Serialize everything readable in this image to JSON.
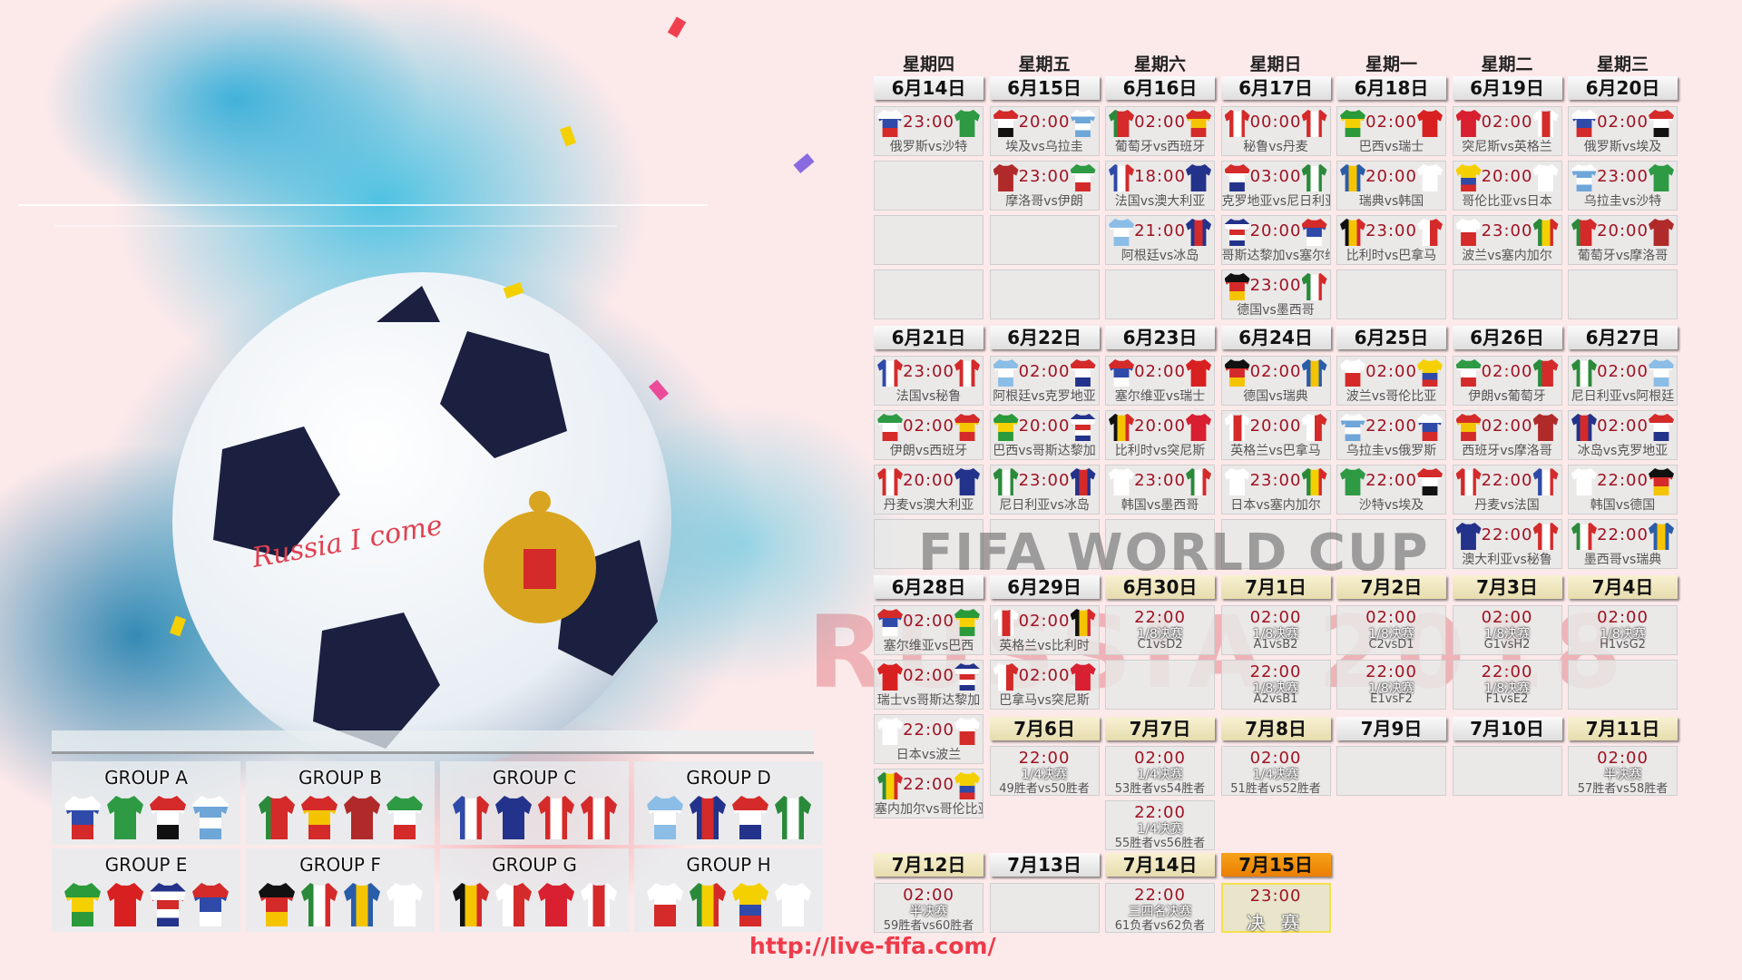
{
  "teams": {
    "RUS": {
      "o": "h",
      "c": [
        "#ffffff",
        "#2f4aa8",
        "#d42a2a"
      ]
    },
    "KSA": {
      "o": "h",
      "c": [
        "#2e9a44"
      ]
    },
    "EGY": {
      "o": "h",
      "c": [
        "#d42a2a",
        "#ffffff",
        "#111111"
      ]
    },
    "URU": {
      "o": "h",
      "c": [
        "#ffffff",
        "#6ea6d8",
        "#ffffff",
        "#6ea6d8"
      ]
    },
    "POR": {
      "o": "v",
      "c": [
        "#2a8a3a",
        "#d42a2a",
        "#d42a2a"
      ]
    },
    "ESP": {
      "o": "h",
      "c": [
        "#d42a2a",
        "#f5c400",
        "#d42a2a"
      ]
    },
    "MAR": {
      "o": "h",
      "c": [
        "#b02a2a"
      ]
    },
    "IRN": {
      "o": "h",
      "c": [
        "#2e9a44",
        "#ffffff",
        "#d42a2a"
      ]
    },
    "FRA": {
      "o": "v",
      "c": [
        "#2f4aa8",
        "#ffffff",
        "#d42a2a"
      ]
    },
    "AUS": {
      "o": "h",
      "c": [
        "#23328a"
      ]
    },
    "PER": {
      "o": "v",
      "c": [
        "#d42a2a",
        "#ffffff",
        "#d42a2a"
      ]
    },
    "DEN": {
      "o": "v",
      "c": [
        "#d42a2a",
        "#ffffff",
        "#d42a2a"
      ]
    },
    "ARG": {
      "o": "h",
      "c": [
        "#8bbde6",
        "#ffffff",
        "#8bbde6"
      ]
    },
    "ISL": {
      "o": "v",
      "c": [
        "#23328a",
        "#d42a2a",
        "#23328a"
      ]
    },
    "CRO": {
      "o": "h",
      "c": [
        "#d42a2a",
        "#ffffff",
        "#23328a"
      ]
    },
    "NGA": {
      "o": "v",
      "c": [
        "#2a8a3a",
        "#ffffff",
        "#2a8a3a"
      ]
    },
    "BRA": {
      "o": "h",
      "c": [
        "#2a9a3a",
        "#f5d000",
        "#2a9a3a"
      ]
    },
    "SUI": {
      "o": "h",
      "c": [
        "#d92020"
      ]
    },
    "CRC": {
      "o": "h",
      "c": [
        "#23328a",
        "#ffffff",
        "#d42a2a",
        "#ffffff",
        "#23328a"
      ]
    },
    "SRB": {
      "o": "h",
      "c": [
        "#d42a2a",
        "#2f4aa8",
        "#ffffff"
      ]
    },
    "GER": {
      "o": "h",
      "c": [
        "#111111",
        "#d42a2a",
        "#f5c400"
      ]
    },
    "MEX": {
      "o": "v",
      "c": [
        "#2a8a3a",
        "#ffffff",
        "#d42a2a"
      ]
    },
    "SWE": {
      "o": "v",
      "c": [
        "#2a5da8",
        "#f5c400",
        "#2a5da8"
      ]
    },
    "KOR": {
      "o": "h",
      "c": [
        "#ffffff"
      ]
    },
    "BEL": {
      "o": "v",
      "c": [
        "#111111",
        "#f5c400",
        "#d42a2a"
      ]
    },
    "PAN": {
      "o": "v",
      "c": [
        "#ffffff",
        "#d42a2a"
      ]
    },
    "TUN": {
      "o": "h",
      "c": [
        "#d82030"
      ]
    },
    "ENG": {
      "o": "v",
      "c": [
        "#ffffff",
        "#d42a2a",
        "#ffffff"
      ]
    },
    "POL": {
      "o": "h",
      "c": [
        "#ffffff",
        "#d42a2a"
      ]
    },
    "SEN": {
      "o": "v",
      "c": [
        "#2a8a3a",
        "#f5d000",
        "#d42a2a"
      ]
    },
    "COL": {
      "o": "h",
      "c": [
        "#f5d000",
        "#f5d000",
        "#2f4aa8",
        "#d42a2a"
      ]
    },
    "JPN": {
      "o": "h",
      "c": [
        "#ffffff"
      ]
    }
  },
  "weekdays": [
    "星期四",
    "星期五",
    "星期六",
    "星期日",
    "星期一",
    "星期二",
    "星期三"
  ],
  "blocks": [
    {
      "date": "6月14日",
      "style": "plain",
      "matches": [
        {
          "time": "23:00",
          "home": "RUS",
          "away": "KSA",
          "label": "俄罗斯vs沙特"
        }
      ]
    },
    {
      "date": "6月15日",
      "style": "plain",
      "matches": [
        {
          "time": "20:00",
          "home": "EGY",
          "away": "URU",
          "label": "埃及vs乌拉圭"
        },
        {
          "time": "23:00",
          "home": "MAR",
          "away": "IRN",
          "label": "摩洛哥vs伊朗"
        }
      ]
    },
    {
      "date": "6月16日",
      "style": "plain",
      "matches": [
        {
          "time": "02:00",
          "home": "POR",
          "away": "ESP",
          "label": "葡萄牙vs西班牙"
        },
        {
          "time": "18:00",
          "home": "FRA",
          "away": "AUS",
          "label": "法国vs澳大利亚"
        },
        {
          "time": "21:00",
          "home": "ARG",
          "away": "ISL",
          "label": "阿根廷vs冰岛"
        }
      ]
    },
    {
      "date": "6月17日",
      "style": "plain",
      "matches": [
        {
          "time": "00:00",
          "home": "PER",
          "away": "DEN",
          "label": "秘鲁vs丹麦"
        },
        {
          "time": "03:00",
          "home": "CRO",
          "away": "NGA",
          "label": "克罗地亚vs尼日利亚"
        },
        {
          "time": "20:00",
          "home": "CRC",
          "away": "SRB",
          "label": "哥斯达黎加vs塞尔维亚"
        },
        {
          "time": "23:00",
          "home": "GER",
          "away": "MEX",
          "label": "德国vs墨西哥"
        }
      ]
    },
    {
      "date": "6月18日",
      "style": "plain",
      "matches": [
        {
          "time": "02:00",
          "home": "BRA",
          "away": "SUI",
          "label": "巴西vs瑞士"
        },
        {
          "time": "20:00",
          "home": "SWE",
          "away": "KOR",
          "label": "瑞典vs韩国"
        },
        {
          "time": "23:00",
          "home": "BEL",
          "away": "PAN",
          "label": "比利时vs巴拿马"
        }
      ]
    },
    {
      "date": "6月19日",
      "style": "plain",
      "matches": [
        {
          "time": "02:00",
          "home": "TUN",
          "away": "ENG",
          "label": "突尼斯vs英格兰"
        },
        {
          "time": "20:00",
          "home": "COL",
          "away": "JPN",
          "label": "哥伦比亚vs日本"
        },
        {
          "time": "23:00",
          "home": "POL",
          "away": "SEN",
          "label": "波兰vs塞内加尔"
        }
      ]
    },
    {
      "date": "6月20日",
      "style": "plain",
      "matches": [
        {
          "time": "02:00",
          "home": "RUS",
          "away": "EGY",
          "label": "俄罗斯vs埃及"
        },
        {
          "time": "23:00",
          "home": "URU",
          "away": "KSA",
          "label": "乌拉圭vs沙特"
        },
        {
          "time": "20:00",
          "home": "POR",
          "away": "MAR",
          "label": "葡萄牙vs摩洛哥"
        }
      ]
    },
    {
      "date": "6月21日",
      "style": "plain",
      "matches": [
        {
          "time": "23:00",
          "home": "FRA",
          "away": "PER",
          "label": "法国vs秘鲁"
        },
        {
          "time": "02:00",
          "home": "IRN",
          "away": "ESP",
          "label": "伊朗vs西班牙"
        },
        {
          "time": "20:00",
          "home": "DEN",
          "away": "AUS",
          "label": "丹麦vs澳大利亚"
        }
      ]
    },
    {
      "date": "6月22日",
      "style": "plain",
      "matches": [
        {
          "time": "02:00",
          "home": "ARG",
          "away": "CRO",
          "label": "阿根廷vs克罗地亚"
        },
        {
          "time": "20:00",
          "home": "BRA",
          "away": "CRC",
          "label": "巴西vs哥斯达黎加"
        },
        {
          "time": "23:00",
          "home": "NGA",
          "away": "ISL",
          "label": "尼日利亚vs冰岛"
        }
      ]
    },
    {
      "date": "6月23日",
      "style": "plain",
      "matches": [
        {
          "time": "02:00",
          "home": "SRB",
          "away": "SUI",
          "label": "塞尔维亚vs瑞士"
        },
        {
          "time": "20:00",
          "home": "BEL",
          "away": "TUN",
          "label": "比利时vs突尼斯"
        },
        {
          "time": "23:00",
          "home": "KOR",
          "away": "MEX",
          "label": "韩国vs墨西哥"
        }
      ]
    },
    {
      "date": "6月24日",
      "style": "plain",
      "matches": [
        {
          "time": "02:00",
          "home": "GER",
          "away": "SWE",
          "label": "德国vs瑞典"
        },
        {
          "time": "20:00",
          "home": "ENG",
          "away": "PAN",
          "label": "英格兰vs巴拿马"
        },
        {
          "time": "23:00",
          "home": "JPN",
          "away": "SEN",
          "label": "日本vs塞内加尔"
        }
      ]
    },
    {
      "date": "6月25日",
      "style": "plain",
      "matches": [
        {
          "time": "02:00",
          "home": "POL",
          "away": "COL",
          "label": "波兰vs哥伦比亚"
        },
        {
          "time": "22:00",
          "home": "URU",
          "away": "RUS",
          "label": "乌拉圭vs俄罗斯"
        },
        {
          "time": "22:00",
          "home": "KSA",
          "away": "EGY",
          "label": "沙特vs埃及"
        }
      ]
    },
    {
      "date": "6月26日",
      "style": "plain",
      "matches": [
        {
          "time": "02:00",
          "home": "IRN",
          "away": "POR",
          "label": "伊朗vs葡萄牙"
        },
        {
          "time": "02:00",
          "home": "ESP",
          "away": "MAR",
          "label": "西班牙vs摩洛哥"
        },
        {
          "time": "22:00",
          "home": "DEN",
          "away": "FRA",
          "label": "丹麦vs法国"
        },
        {
          "time": "22:00",
          "home": "AUS",
          "away": "PER",
          "label": "澳大利亚vs秘鲁"
        }
      ]
    },
    {
      "date": "6月27日",
      "style": "plain",
      "matches": [
        {
          "time": "02:00",
          "home": "NGA",
          "away": "ARG",
          "label": "尼日利亚vs阿根廷"
        },
        {
          "time": "02:00",
          "home": "ISL",
          "away": "CRO",
          "label": "冰岛vs克罗地亚"
        },
        {
          "time": "22:00",
          "home": "KOR",
          "away": "GER",
          "label": "韩国vs德国"
        },
        {
          "time": "22:00",
          "home": "MEX",
          "away": "SWE",
          "label": "墨西哥vs瑞典"
        }
      ]
    },
    {
      "date": "6月28日",
      "style": "plain",
      "matches": [
        {
          "time": "02:00",
          "home": "SRB",
          "away": "BRA",
          "label": "塞尔维亚vs巴西"
        },
        {
          "time": "02:00",
          "home": "SUI",
          "away": "CRC",
          "label": "瑞士vs哥斯达黎加"
        },
        {
          "time": "22:00",
          "home": "JPN",
          "away": "POL",
          "label": "日本vs波兰"
        },
        {
          "time": "22:00",
          "home": "SEN",
          "away": "COL",
          "label": "塞内加尔vs哥伦比亚"
        }
      ]
    },
    {
      "date": "6月29日",
      "style": "plain",
      "matches": [
        {
          "time": "02:00",
          "home": "ENG",
          "away": "BEL",
          "label": "英格兰vs比利时"
        },
        {
          "time": "02:00",
          "home": "PAN",
          "away": "TUN",
          "label": "巴拿马vs突尼斯"
        }
      ]
    },
    {
      "date": "6月30日",
      "style": "beige",
      "matches": [
        {
          "time": "22:00",
          "stage": "1/8决赛",
          "pair": "C1vsD2"
        }
      ]
    },
    {
      "date": "7月1日",
      "style": "beige",
      "matches": [
        {
          "time": "02:00",
          "stage": "1/8决赛",
          "pair": "A1vsB2"
        },
        {
          "time": "22:00",
          "stage": "1/8决赛",
          "pair": "A2vsB1"
        }
      ]
    },
    {
      "date": "7月2日",
      "style": "beige",
      "matches": [
        {
          "time": "02:00",
          "stage": "1/8决赛",
          "pair": "C2vsD1"
        },
        {
          "time": "22:00",
          "stage": "1/8决赛",
          "pair": "E1vsF2"
        }
      ]
    },
    {
      "date": "7月3日",
      "style": "beige",
      "matches": [
        {
          "time": "02:00",
          "stage": "1/8决赛",
          "pair": "G1vsH2"
        },
        {
          "time": "22:00",
          "stage": "1/8决赛",
          "pair": "F1vsE2"
        }
      ]
    },
    {
      "date": "7月4日",
      "style": "beige",
      "matches": [
        {
          "time": "02:00",
          "stage": "1/8决赛",
          "pair": "H1vsG2"
        }
      ]
    },
    {
      "date": "7月6日",
      "style": "beige",
      "matches": [
        {
          "time": "22:00",
          "stage": "1/4决赛",
          "pair": "49胜者vs50胜者"
        }
      ]
    },
    {
      "date": "7月7日",
      "style": "beige",
      "matches": [
        {
          "time": "02:00",
          "stage": "1/4决赛",
          "pair": "53胜者vs54胜者"
        },
        {
          "time": "22:00",
          "stage": "1/4决赛",
          "pair": "55胜者vs56胜者"
        }
      ]
    },
    {
      "date": "7月8日",
      "style": "beige",
      "matches": [
        {
          "time": "02:00",
          "stage": "1/4决赛",
          "pair": "51胜者vs52胜者"
        }
      ]
    },
    {
      "date": "7月9日",
      "style": "plain",
      "matches": []
    },
    {
      "date": "7月10日",
      "style": "plain",
      "matches": []
    },
    {
      "date": "7月11日",
      "style": "beige",
      "matches": [
        {
          "time": "02:00",
          "stage": "半决赛",
          "pair": "57胜者vs58胜者"
        }
      ]
    },
    {
      "date": "7月12日",
      "style": "beige",
      "matches": [
        {
          "time": "02:00",
          "stage": "半决赛",
          "pair": "59胜者vs60胜者"
        }
      ]
    },
    {
      "date": "7月13日",
      "style": "plain",
      "matches": []
    },
    {
      "date": "7月14日",
      "style": "beige",
      "matches": [
        {
          "time": "22:00",
          "stage": "三四名决赛",
          "pair": "61负者vs62负者"
        }
      ]
    },
    {
      "date": "7月15日",
      "style": "orange",
      "matches": [
        {
          "time": "23:00",
          "stage": "决 赛",
          "final": true
        }
      ]
    }
  ],
  "groups": [
    {
      "name": "GROUP A",
      "teams": [
        "RUS",
        "KSA",
        "EGY",
        "URU"
      ]
    },
    {
      "name": "GROUP B",
      "teams": [
        "POR",
        "ESP",
        "MAR",
        "IRN"
      ]
    },
    {
      "name": "GROUP C",
      "teams": [
        "FRA",
        "AUS",
        "PER",
        "DEN"
      ]
    },
    {
      "name": "GROUP D",
      "teams": [
        "ARG",
        "ISL",
        "CRO",
        "NGA"
      ]
    },
    {
      "name": "GROUP E",
      "teams": [
        "BRA",
        "SUI",
        "CRC",
        "SRB"
      ]
    },
    {
      "name": "GROUP F",
      "teams": [
        "GER",
        "MEX",
        "SWE",
        "KOR"
      ]
    },
    {
      "name": "GROUP G",
      "teams": [
        "BEL",
        "PAN",
        "TUN",
        "ENG"
      ]
    },
    {
      "name": "GROUP H",
      "teams": [
        "POL",
        "SEN",
        "COL",
        "JPN"
      ]
    }
  ],
  "watermark": {
    "line1": "FIFA WORLD CUP",
    "line2": "RUSSIA 2018"
  },
  "ball_text": "Russia I come",
  "url": "http://live-fifa.com/",
  "colors": {
    "time": "#9e1322",
    "url": "#ee3b4a",
    "final_bar": "#ea7e00",
    "knockout_bar": "#efe6c0",
    "background": "#fce9ea"
  }
}
